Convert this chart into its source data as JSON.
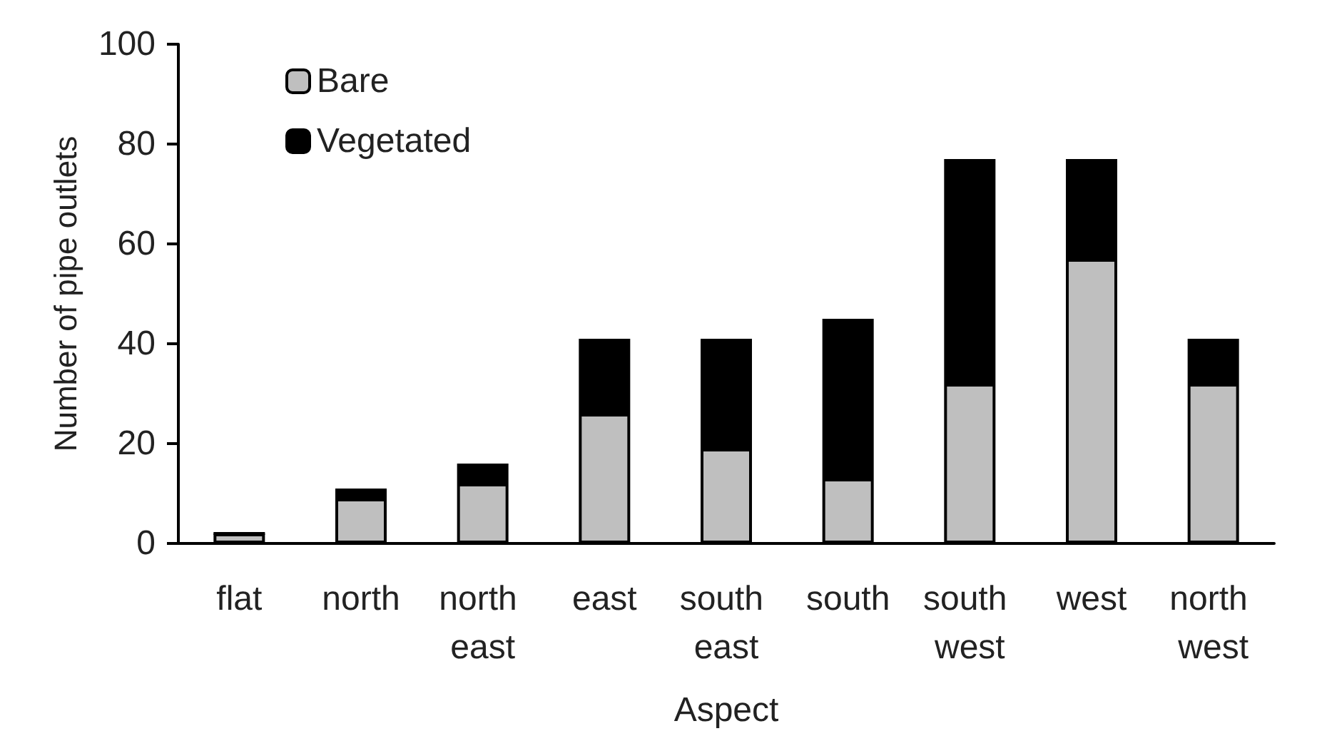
{
  "chart_data": {
    "type": "bar",
    "stacked": true,
    "xlabel": "Aspect",
    "ylabel": "Number of pipe outlets",
    "categories": [
      "flat",
      "north",
      "north east",
      "east",
      "south east",
      "south",
      "south west",
      "west",
      "north west"
    ],
    "series": [
      {
        "name": "Bare",
        "color": "#bfbfbf",
        "values": [
          2,
          9,
          12,
          26,
          19,
          13,
          32,
          57,
          32
        ]
      },
      {
        "name": "Vegetated",
        "color": "#000000",
        "values": [
          0,
          2,
          4,
          15,
          22,
          32,
          45,
          20,
          9
        ]
      }
    ],
    "ylim": [
      0,
      100
    ],
    "yticks": [
      0,
      20,
      40,
      60,
      80,
      100
    ],
    "grid": false,
    "legend": "top left"
  }
}
